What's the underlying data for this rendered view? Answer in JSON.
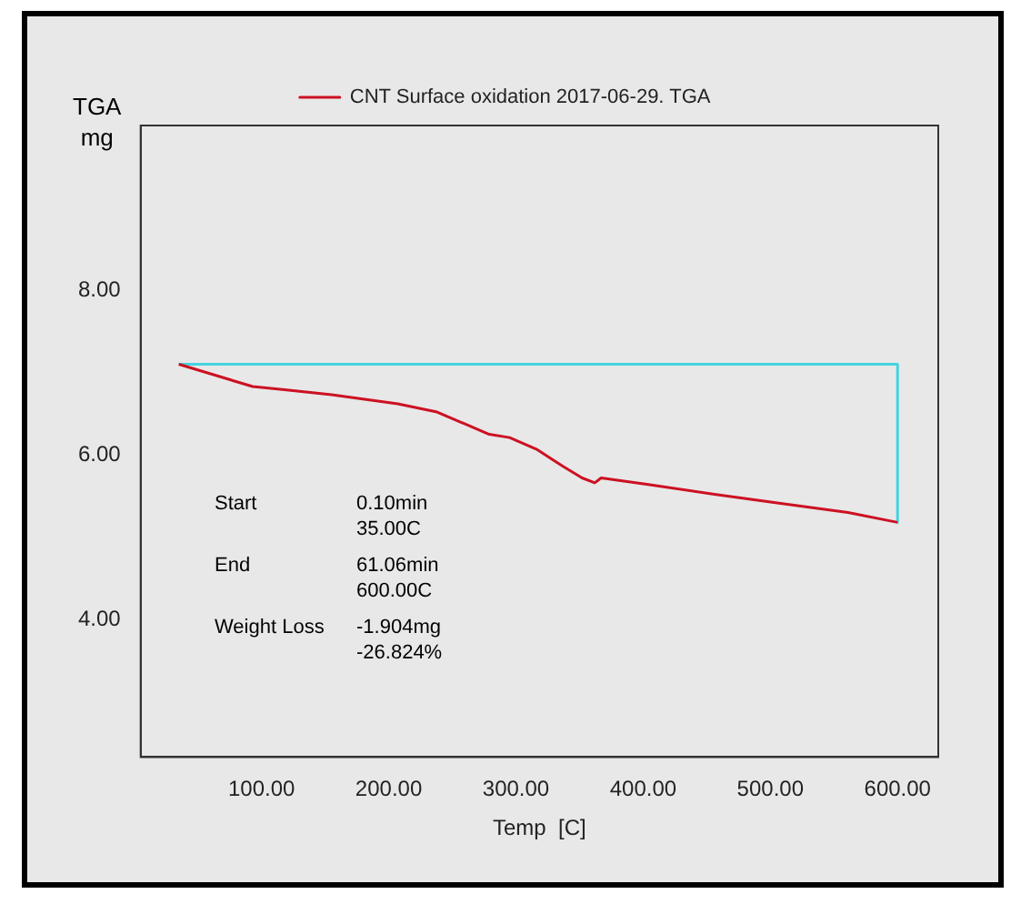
{
  "chart_data": {
    "type": "line",
    "xlabel": "Temp  [C]",
    "ylabel": "TGA\nmg",
    "xlim": [
      5,
      632
    ],
    "xticks": [
      {
        "value": 100,
        "label": "100.00"
      },
      {
        "value": 200,
        "label": "200.00"
      },
      {
        "value": 300,
        "label": "300.00"
      },
      {
        "value": 400,
        "label": "400.00"
      },
      {
        "value": 500,
        "label": "500.00"
      },
      {
        "value": 600,
        "label": "600.00"
      }
    ],
    "ylim": [
      2.33,
      10
    ],
    "yticks": [
      {
        "value": 4,
        "label": "4.00"
      },
      {
        "value": 6,
        "label": "6.00"
      },
      {
        "value": 8,
        "label": "8.00"
      }
    ],
    "grid": false,
    "legend": "top",
    "marker": "none",
    "line_style": "solid",
    "series": [
      {
        "name": "CNT Surface oxidation 2017-06-29. TGA",
        "color": "#cc1122",
        "x": [
          35,
          93,
          118,
          155,
          207,
          238,
          279,
          295,
          316,
          337,
          352,
          362,
          367,
          404,
          456,
          508,
          561,
          600
        ],
        "values": [
          7.1,
          6.83,
          6.79,
          6.73,
          6.62,
          6.52,
          6.25,
          6.21,
          6.07,
          5.86,
          5.72,
          5.66,
          5.72,
          5.64,
          5.52,
          5.41,
          5.3,
          5.18
        ]
      },
      {
        "color": "#44d4e0",
        "x": [
          35,
          600,
          600
        ],
        "values": [
          7.1,
          7.1,
          5.18
        ]
      }
    ],
    "annotations": [
      "Start",
      "0.10min\n35.00C",
      "End",
      "61.06min\n600.00C",
      "Weight Loss",
      "-1.904mg\n-26.824%"
    ]
  }
}
